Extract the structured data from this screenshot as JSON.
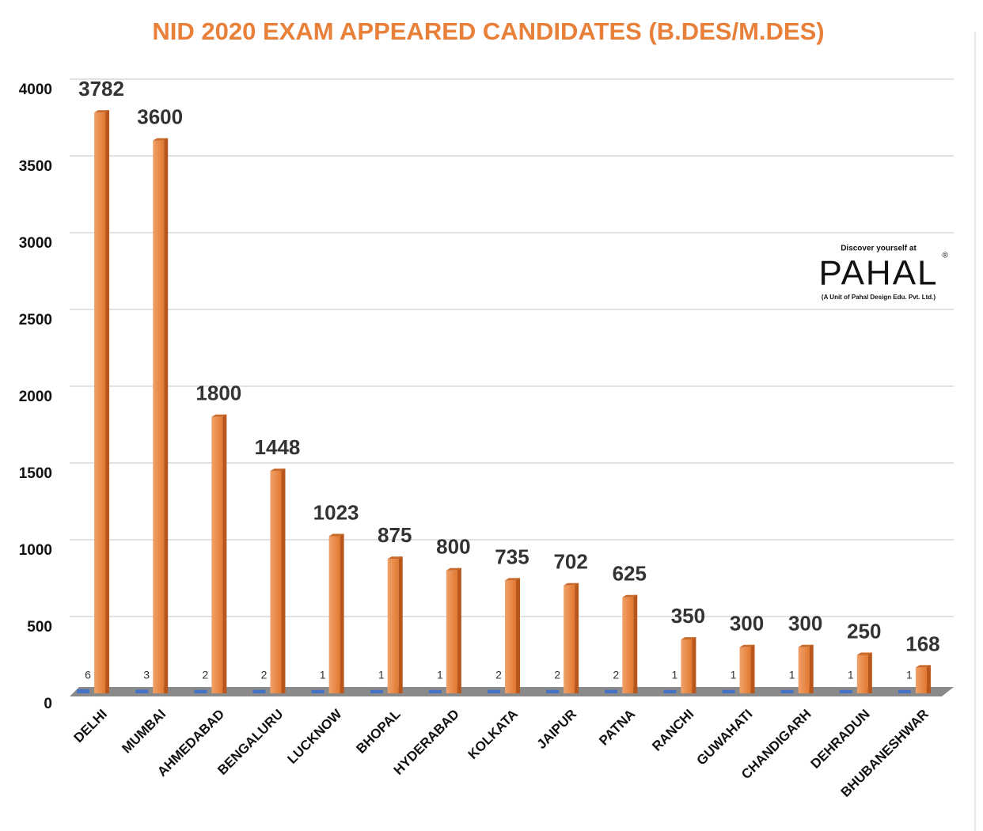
{
  "chart_data": {
    "type": "bar",
    "title": "NID 2020 EXAM APPEARED CANDIDATES (B.DES/M.DES)",
    "categories": [
      "DELHI",
      "MUMBAI",
      "AHMEDABAD",
      "BENGALURU",
      "LUCKNOW",
      "BHOPAL",
      "HYDERABAD",
      "KOLKATA",
      "JAIPUR",
      "PATNA",
      "RANCHI",
      "GUWAHATI",
      "CHANDIGARH",
      "DEHRADUN",
      "BHUBANESHWAR"
    ],
    "series": [
      {
        "color": "#4472c4",
        "values": [
          6,
          3,
          2,
          2,
          1,
          1,
          1,
          2,
          2,
          2,
          1,
          1,
          1,
          1,
          1
        ]
      },
      {
        "color": "#e8803a",
        "values": [
          3782,
          3600,
          1800,
          1448,
          1023,
          875,
          800,
          735,
          702,
          625,
          350,
          300,
          300,
          250,
          168
        ]
      }
    ],
    "ylim": [
      0,
      4000
    ],
    "yticks": [
      0,
      500,
      1000,
      1500,
      2000,
      2500,
      3000,
      3500,
      4000
    ],
    "grid": true,
    "logo": {
      "tagline": "Discover yourself at",
      "brand": "PAHAL",
      "mark": "®",
      "subtitle": "(A Unit of Pahal Design Edu. Pvt. Ltd.)"
    }
  }
}
